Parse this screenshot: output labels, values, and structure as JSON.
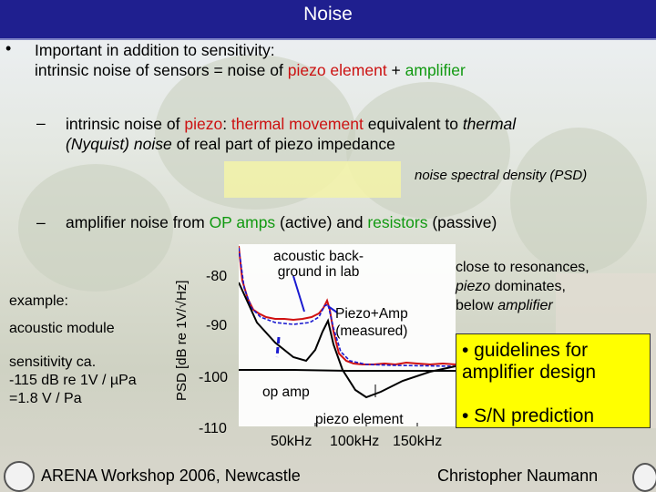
{
  "title": "Noise",
  "bullet1": {
    "marker": "•",
    "line1": "Important in addition to sensitivity:",
    "line2_a": "intrinsic noise of sensors = noise of ",
    "line2_b": "piezo element",
    "line2_c": " + ",
    "line2_d": "amplifier"
  },
  "bullet2": {
    "dash": "–",
    "a": "intrinsic noise of ",
    "b": "piezo",
    "c": ": ",
    "d": "thermal movement",
    "e": " equivalent to ",
    "f": "thermal",
    "g": "(Nyquist) noise",
    "h": " of real part of piezo impedance"
  },
  "psd_label": "noise spectral density (PSD)",
  "bullet3": {
    "dash": "–",
    "a": "amplifier noise from ",
    "b": "OP amps",
    "c": " (active) and ",
    "d": "resistors",
    "e": " (passive)"
  },
  "left_text": {
    "example": "example:",
    "module": "acoustic module",
    "sens1": "sensitivity ca.",
    "sens2": "-115 dB re 1V / µPa",
    "sens3": "=1.8 V / Pa"
  },
  "chart_data": {
    "type": "line",
    "ylabel": "PSD [dB re 1V/√Hz]",
    "yticks": [
      "-80",
      "-90",
      "-100",
      "-110"
    ],
    "xticks": [
      "50kHz",
      "100kHz",
      "150kHz"
    ],
    "annotations": {
      "acoustic1": "acoustic back-",
      "acoustic2": "ground in lab",
      "piezoamp1": "Piezo+Amp",
      "piezoamp2": "(measured)",
      "opamp": "op amp",
      "piezo": "piezo element"
    },
    "colors": {
      "measured": "#d01010",
      "model": "#1a1ad0",
      "component": "#000000"
    }
  },
  "right_text": {
    "r1": "close to resonances,",
    "r2a": "piezo",
    "r2b": " dominates,",
    "r3a": "below ",
    "r3b": "amplifier"
  },
  "box": {
    "g1_l1": "• guidelines for",
    "g1_l2": "amplifier design",
    "g2": "• S/N prediction"
  },
  "footer": {
    "left": "ARENA Workshop 2006, Newcastle",
    "right": "Christopher Naumann"
  }
}
